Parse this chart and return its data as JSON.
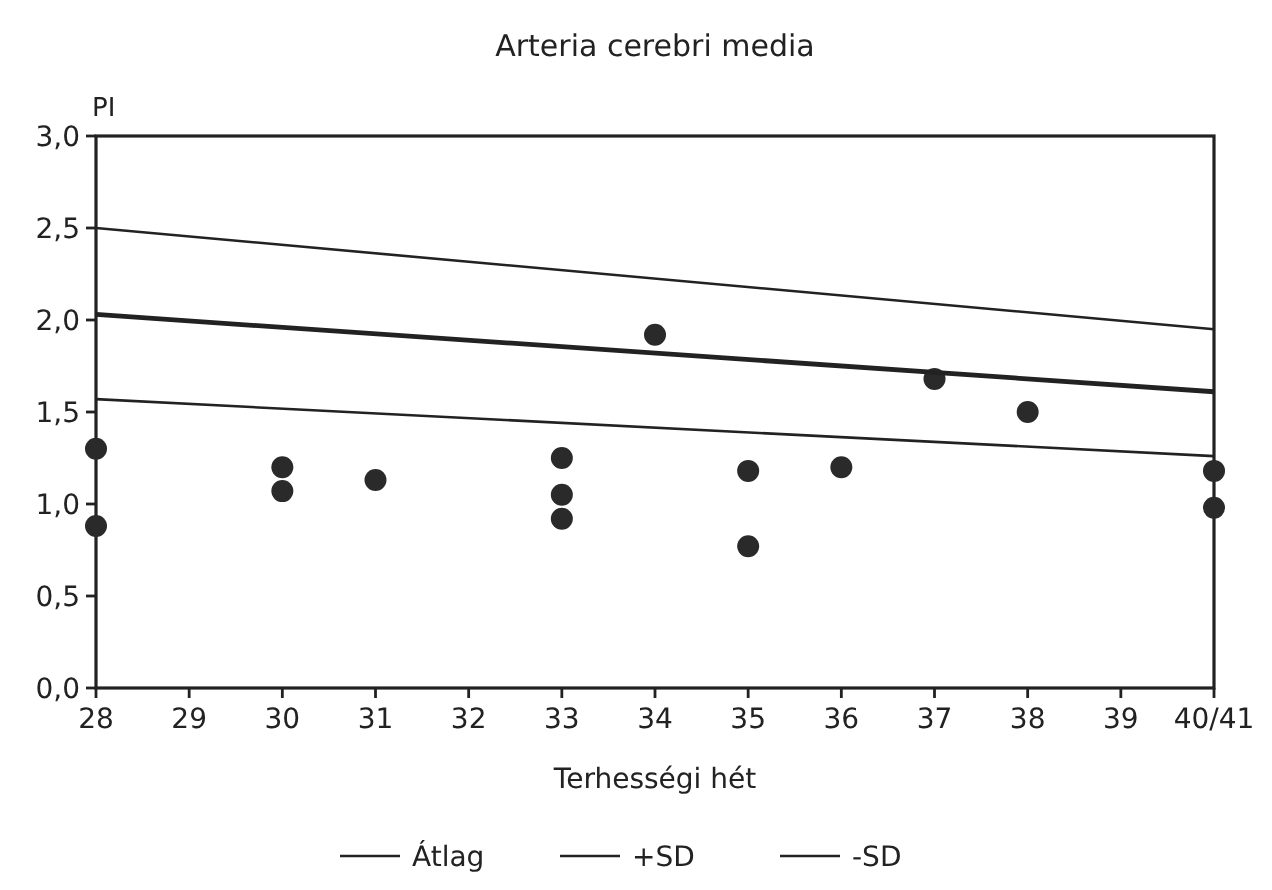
{
  "chart_data": {
    "type": "scatter",
    "title": "Arteria cerebri media",
    "xlabel": "Terhességi hét",
    "ylabel": "PI",
    "xlim": [
      28,
      40
    ],
    "xticks": [
      28,
      29,
      30,
      31,
      32,
      33,
      34,
      35,
      36,
      37,
      38,
      39,
      {
        "value": 40,
        "label": "40/41"
      }
    ],
    "ylim": [
      0,
      3
    ],
    "yticks": [
      {
        "value": 0,
        "label": "0,0"
      },
      {
        "value": 0.5,
        "label": "0,5"
      },
      {
        "value": 1,
        "label": "1,0"
      },
      {
        "value": 1.5,
        "label": "1,5"
      },
      {
        "value": 2,
        "label": "2,0"
      },
      {
        "value": 2.5,
        "label": "2,5"
      },
      {
        "value": 3,
        "label": "3,0"
      }
    ],
    "grid": false,
    "legend": "bottom",
    "series": [
      {
        "marker": "circle",
        "color": "#2a2a2a",
        "x": [
          28,
          28,
          30,
          30,
          31,
          33,
          33,
          33,
          34,
          35,
          35,
          36,
          37,
          38,
          40,
          40
        ],
        "values": [
          1.3,
          0.88,
          1.2,
          1.07,
          1.13,
          1.25,
          1.05,
          0.92,
          1.92,
          1.18,
          0.77,
          1.2,
          1.68,
          1.5,
          1.18,
          0.98
        ]
      },
      {
        "type": "line",
        "name": "Átlag",
        "color": "#222222",
        "x": [
          28,
          40
        ],
        "values": [
          2.03,
          1.61
        ],
        "line_style": "solid"
      },
      {
        "type": "line",
        "name": "+SD",
        "color": "#222222",
        "x": [
          28,
          40
        ],
        "values": [
          2.5,
          1.95
        ],
        "line_style": "solid"
      },
      {
        "type": "line",
        "name": "-SD",
        "color": "#222222",
        "x": [
          28,
          40
        ],
        "values": [
          1.57,
          1.26
        ],
        "line_style": "solid"
      }
    ]
  }
}
